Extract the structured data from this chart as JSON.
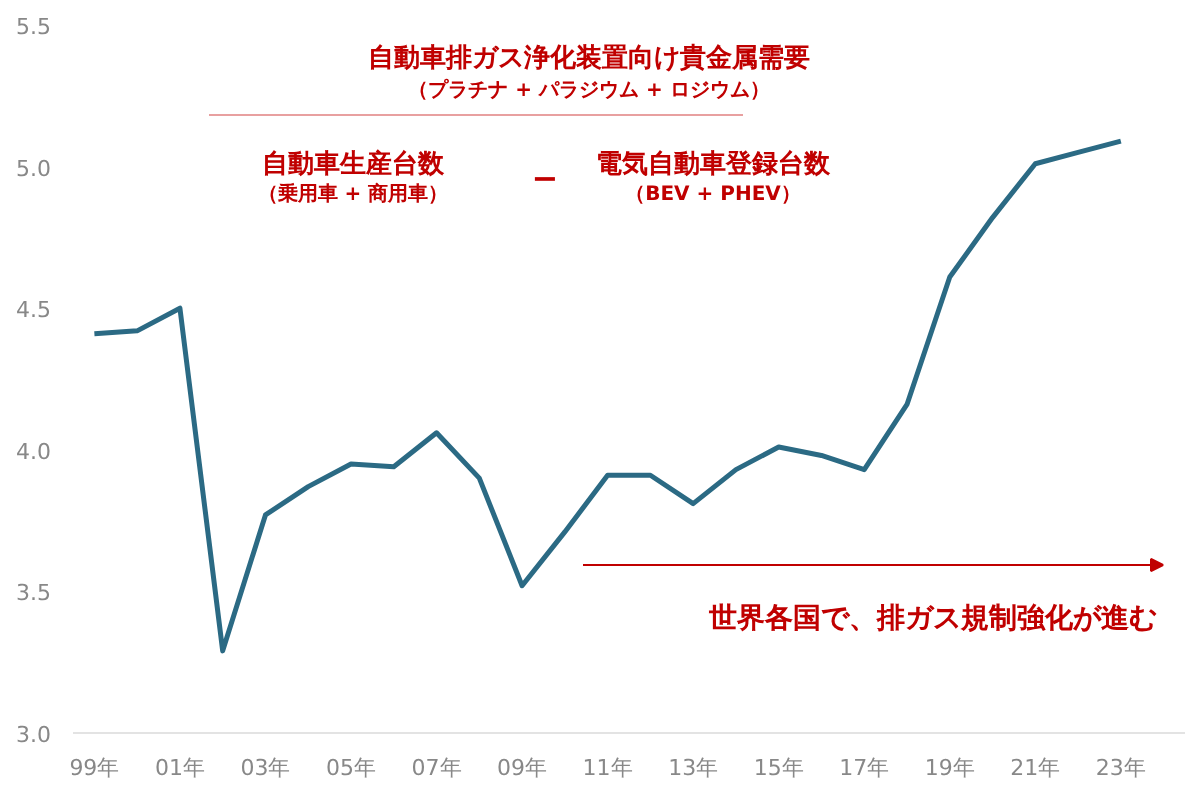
{
  "chart_data": {
    "type": "line",
    "categories": [
      "99年",
      null,
      "01年",
      null,
      "03年",
      null,
      "05年",
      null,
      "07年",
      null,
      "09年",
      null,
      "11年",
      null,
      "13年",
      null,
      "15年",
      null,
      "17年",
      null,
      "19年",
      null,
      "21年",
      null,
      "23年"
    ],
    "series": [
      {
        "color": "#2b6a84",
        "values": [
          4.41,
          4.42,
          4.5,
          3.29,
          3.77,
          3.87,
          3.95,
          3.94,
          4.06,
          3.9,
          3.52,
          3.71,
          3.91,
          3.91,
          3.81,
          3.93,
          4.01,
          3.98,
          3.93,
          4.16,
          4.61,
          4.82,
          5.01,
          5.05,
          5.09
        ]
      }
    ],
    "ylim": [
      3.0,
      5.5
    ],
    "yticks": [
      {
        "value": 3.0,
        "label": "3.0"
      },
      {
        "value": 3.5,
        "label": "3.5"
      },
      {
        "value": 4.0,
        "label": "4.0"
      },
      {
        "value": 4.5,
        "label": "4.5"
      },
      {
        "value": 5.0,
        "label": "5.0"
      },
      {
        "value": 5.5,
        "label": "5.5"
      }
    ],
    "annotations": [
      "自動車排ガス浄化装置向け貴金属需要",
      "（プラチナ + パラジウム + ロジウム）",
      "自動車生産台数",
      "（乗用車 + 商用車）",
      "−",
      "電気自動車登録台数",
      "（BEV + PHEV）",
      "世界各国で、排ガス規制強化が進む"
    ],
    "grid": false,
    "marker": "none",
    "line_style": "solid"
  }
}
